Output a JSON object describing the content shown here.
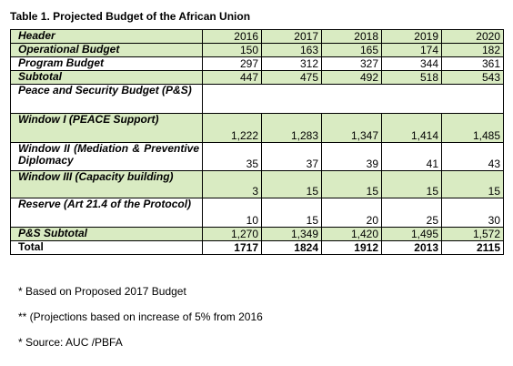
{
  "caption": "Table 1.  Projected Budget of the African Union",
  "columns": [
    "Header",
    "2016",
    "2017",
    "2018",
    "2019",
    "2020"
  ],
  "rows": [
    {
      "label": "Operational Budget",
      "values": [
        "150",
        "163",
        "165",
        "174",
        "182"
      ]
    },
    {
      "label": "Program Budget",
      "values": [
        "297",
        "312",
        "327",
        "344",
        "361"
      ]
    },
    {
      "label": "Subtotal",
      "values": [
        "447",
        "475",
        "492",
        "518",
        "543"
      ]
    },
    {
      "label": "Peace and Security Budget (P&S)",
      "values": [
        "",
        "",
        "",
        "",
        ""
      ]
    },
    {
      "label": "Window I (PEACE Support)",
      "values": [
        "1,222",
        "1,283",
        "1,347",
        "1,414",
        "1,485"
      ]
    },
    {
      "label": "Window II (Mediation & Preventive Diplomacy",
      "values": [
        "35",
        "37",
        "39",
        "41",
        "43"
      ]
    },
    {
      "label": "Window III (Capacity building)",
      "values": [
        "3",
        "15",
        "15",
        "15",
        "15"
      ]
    },
    {
      "label": "Reserve (Art 21.4 of the Protocol)",
      "values": [
        "10",
        "15",
        "20",
        "25",
        "30"
      ]
    },
    {
      "label": "P&S Subtotal",
      "values": [
        "1,270",
        "1,349",
        "1,420",
        "1,495",
        "1,572"
      ]
    },
    {
      "label": "Total",
      "values": [
        "1717",
        "1824",
        "1912",
        "2013",
        "2115"
      ]
    }
  ],
  "row_fill_color": "#d9ebc2",
  "notes": [
    "* Based on Proposed 2017 Budget",
    "** (Projections based on increase of 5% from 2016",
    "* Source:  AUC /PBFA"
  ]
}
